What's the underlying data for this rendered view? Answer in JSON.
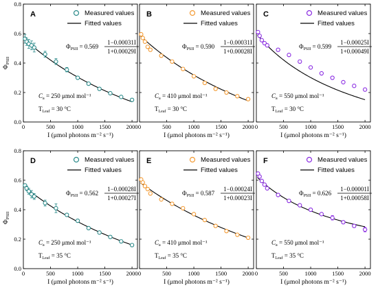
{
  "figure": {
    "y_axis_label": "Φ",
    "y_axis_label_sub": "PSII",
    "x_axis_label": "I (μmol photons m⁻² s⁻¹)",
    "legend": {
      "measured": "Measured values",
      "fitted": "Fitted values"
    }
  },
  "chart_data": [
    {
      "type": "scatter",
      "panel": "A",
      "color": "#2b8a8a",
      "xlim": [
        0,
        2100
      ],
      "ylim": [
        0.0,
        0.8
      ],
      "xticks": [
        0,
        500,
        1000,
        1500,
        2000
      ],
      "yticks": [
        0.0,
        0.2,
        0.4,
        0.6,
        0.8
      ],
      "equation": {
        "coef": "0.569",
        "num": "1−0.00031I",
        "den": "1+0.00029I"
      },
      "ca": "= 250 μmol mol⁻¹",
      "tleaf": "= 30 °C",
      "fit": {
        "a": 0.569,
        "b": 0.00031,
        "c": 0.00029
      },
      "points": {
        "x": [
          30,
          60,
          100,
          150,
          200,
          400,
          600,
          800,
          1000,
          1200,
          1400,
          1600,
          1800,
          2000
        ],
        "y": [
          0.565,
          0.545,
          0.53,
          0.52,
          0.505,
          0.46,
          0.41,
          0.355,
          0.3,
          0.26,
          0.225,
          0.195,
          0.17,
          0.15
        ],
        "err": [
          0.03,
          0.025,
          0.03,
          0.03,
          0.03,
          0.02,
          0.02,
          0.015,
          0.01,
          0.01,
          0.01,
          0.01,
          0.01,
          0.01
        ]
      }
    },
    {
      "type": "scatter",
      "panel": "B",
      "color": "#f39a32",
      "xlim": [
        0,
        2100
      ],
      "ylim": [
        0.0,
        0.8
      ],
      "xticks": [
        0,
        500,
        1000,
        1500,
        2000
      ],
      "yticks": [
        0.0,
        0.2,
        0.4,
        0.6,
        0.8
      ],
      "equation": {
        "coef": "0.590",
        "num": "1−0.00031I",
        "den": "1+0.00028I"
      },
      "ca": "= 410 μmol mol⁻¹",
      "tleaf": "= 30 °C",
      "fit": {
        "a": 0.59,
        "b": 0.00031,
        "c": 0.00028
      },
      "points": {
        "x": [
          30,
          60,
          100,
          150,
          200,
          400,
          600,
          800,
          1000,
          1200,
          1400,
          1600,
          1800,
          2000
        ],
        "y": [
          0.595,
          0.57,
          0.545,
          0.51,
          0.49,
          0.45,
          0.41,
          0.36,
          0.31,
          0.265,
          0.225,
          0.2,
          0.175,
          0.155
        ],
        "err": [
          0.01,
          0.01,
          0.01,
          0.01,
          0.01,
          0.01,
          0.01,
          0.01,
          0.01,
          0.01,
          0.01,
          0.01,
          0.01,
          0.01
        ]
      }
    },
    {
      "type": "scatter",
      "panel": "C",
      "color": "#8a2be2",
      "xlim": [
        0,
        2100
      ],
      "ylim": [
        0.0,
        0.8
      ],
      "xticks": [
        0,
        500,
        1000,
        1500,
        2000
      ],
      "yticks": [
        0.0,
        0.2,
        0.4,
        0.6,
        0.8
      ],
      "equation": {
        "coef": "0.599",
        "num": "1−0.00025I",
        "den": "1+0.00049I"
      },
      "ca": "= 550 μmol mol⁻¹",
      "tleaf": "= 30 °C",
      "fit": {
        "a": 0.599,
        "b": 0.00025,
        "c": 0.00049
      },
      "points": {
        "x": [
          30,
          60,
          100,
          150,
          200,
          400,
          600,
          800,
          1000,
          1200,
          1400,
          1600,
          1800,
          2000
        ],
        "y": [
          0.61,
          0.585,
          0.555,
          0.535,
          0.52,
          0.49,
          0.455,
          0.41,
          0.37,
          0.33,
          0.3,
          0.27,
          0.245,
          0.22
        ],
        "err": [
          0.01,
          0.01,
          0.01,
          0.01,
          0.01,
          0.01,
          0.01,
          0.01,
          0.01,
          0.01,
          0.01,
          0.01,
          0.01,
          0.01
        ]
      }
    },
    {
      "type": "scatter",
      "panel": "D",
      "color": "#2b8a8a",
      "xlim": [
        0,
        2100
      ],
      "ylim": [
        0.0,
        0.8
      ],
      "xticks": [
        0,
        500,
        1000,
        1500,
        2000
      ],
      "yticks": [
        0.0,
        0.2,
        0.4,
        0.6,
        0.8
      ],
      "equation": {
        "coef": "0.562",
        "num": "1−0.00028I",
        "den": "1+0.00027I"
      },
      "ca": "= 250 μmol mol⁻¹",
      "tleaf": "= 35 °C",
      "fit": {
        "a": 0.562,
        "b": 0.00028,
        "c": 0.00027
      },
      "points": {
        "x": [
          30,
          60,
          100,
          150,
          200,
          400,
          600,
          800,
          1000,
          1200,
          1400,
          1600,
          1800,
          2000
        ],
        "y": [
          0.565,
          0.545,
          0.525,
          0.505,
          0.49,
          0.445,
          0.41,
          0.365,
          0.325,
          0.275,
          0.245,
          0.215,
          0.185,
          0.16
        ],
        "err": [
          0.01,
          0.015,
          0.02,
          0.025,
          0.02,
          0.02,
          0.03,
          0.01,
          0.01,
          0.01,
          0.01,
          0.01,
          0.01,
          0.01
        ]
      }
    },
    {
      "type": "scatter",
      "panel": "E",
      "color": "#f39a32",
      "xlim": [
        0,
        2100
      ],
      "ylim": [
        0.0,
        0.8
      ],
      "xticks": [
        0,
        500,
        1000,
        1500,
        2000
      ],
      "yticks": [
        0.0,
        0.2,
        0.4,
        0.6,
        0.8
      ],
      "equation": {
        "coef": "0.587",
        "num": "1−0.00024I",
        "den": "1+0.00023I"
      },
      "ca": "= 410 μmol mol⁻¹",
      "tleaf": "= 35 °C",
      "fit": {
        "a": 0.587,
        "b": 0.00024,
        "c": 0.00023
      },
      "points": {
        "x": [
          30,
          60,
          100,
          150,
          200,
          400,
          600,
          800,
          1000,
          1200,
          1400,
          1600,
          1800,
          2000
        ],
        "y": [
          0.605,
          0.585,
          0.56,
          0.54,
          0.51,
          0.47,
          0.44,
          0.41,
          0.37,
          0.33,
          0.29,
          0.255,
          0.23,
          0.21
        ],
        "err": [
          0.01,
          0.01,
          0.01,
          0.01,
          0.01,
          0.01,
          0.01,
          0.01,
          0.01,
          0.01,
          0.01,
          0.01,
          0.01,
          0.01
        ]
      }
    },
    {
      "type": "scatter",
      "panel": "F",
      "color": "#8a2be2",
      "xlim": [
        0,
        2100
      ],
      "ylim": [
        0.0,
        0.8
      ],
      "xticks": [
        0,
        500,
        1000,
        1500,
        2000
      ],
      "yticks": [
        0.0,
        0.2,
        0.4,
        0.6,
        0.8
      ],
      "equation": {
        "coef": "0.626",
        "num": "1−0.00001I",
        "den": "1+0.00058I"
      },
      "ca": "= 550 μmol mol⁻¹",
      "tleaf": "= 35 °C",
      "fit": {
        "a": 0.626,
        "b": 1e-05,
        "c": 0.00058
      },
      "points": {
        "x": [
          30,
          60,
          100,
          150,
          200,
          400,
          600,
          800,
          1000,
          1200,
          1400,
          1600,
          1800,
          2000
        ],
        "y": [
          0.645,
          0.625,
          0.595,
          0.57,
          0.545,
          0.5,
          0.46,
          0.43,
          0.4,
          0.37,
          0.345,
          0.315,
          0.29,
          0.265
        ],
        "err": [
          0.01,
          0.01,
          0.01,
          0.01,
          0.01,
          0.01,
          0.01,
          0.01,
          0.01,
          0.01,
          0.015,
          0.01,
          0.01,
          0.015
        ]
      }
    }
  ]
}
